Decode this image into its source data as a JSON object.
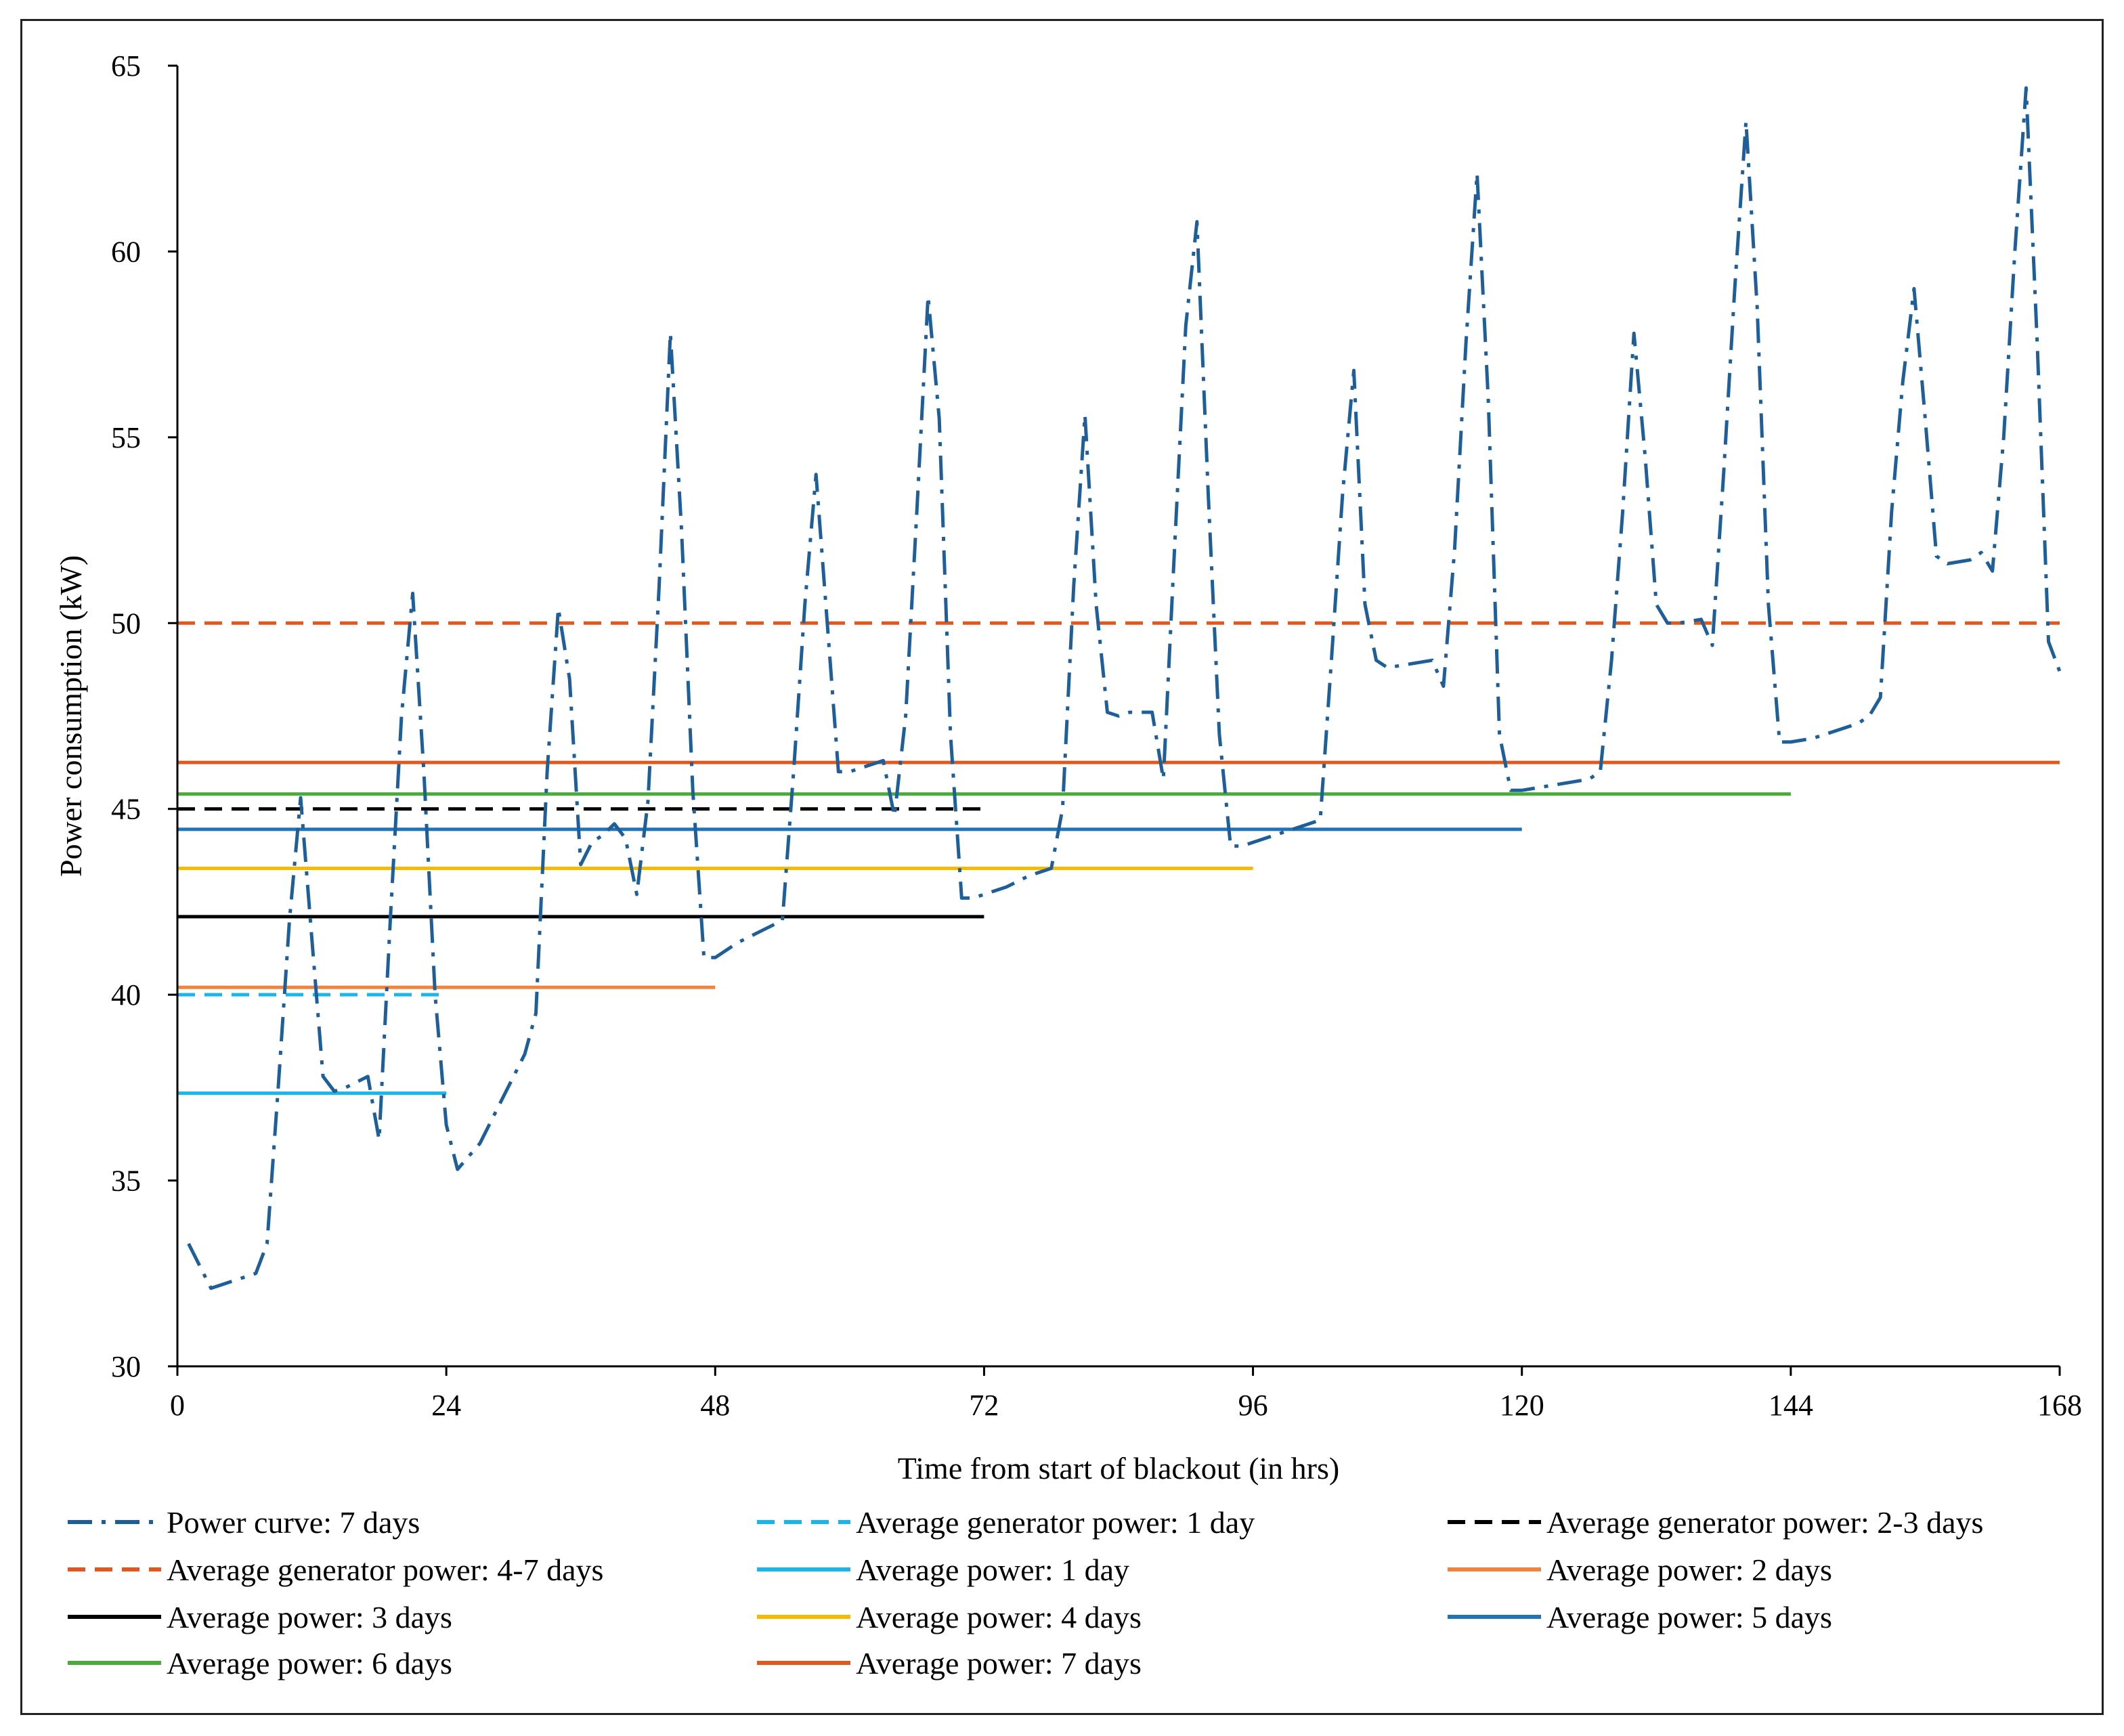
{
  "chart_data": {
    "type": "line",
    "title": "",
    "xlabel": "Time from start of blackout (in hrs)",
    "ylabel": "Power consumption (kW)",
    "xlim": [
      0,
      168
    ],
    "ylim": [
      30,
      65
    ],
    "x_ticks": [
      0,
      24,
      48,
      72,
      96,
      120,
      144,
      168
    ],
    "y_ticks": [
      30,
      35,
      40,
      45,
      50,
      55,
      60,
      65
    ],
    "grid": false,
    "legend_position": "bottom",
    "series": [
      {
        "id": "power-curve",
        "name": "Power curve: 7 days",
        "color": "#1f5f99",
        "dash": "dash-dot",
        "x": [
          1,
          3,
          7,
          8,
          9,
          10,
          11,
          12,
          13,
          14,
          15,
          17,
          18,
          19,
          20,
          21,
          22,
          23,
          24,
          25,
          27,
          29,
          31,
          32,
          33,
          34,
          35,
          36,
          37,
          38,
          39,
          40,
          41,
          42,
          43,
          44,
          45,
          46,
          47,
          48,
          50,
          52,
          54,
          55,
          56,
          57,
          58,
          59,
          60,
          61,
          63,
          64,
          65,
          66,
          67,
          68,
          69,
          70,
          71,
          72,
          74,
          76,
          78,
          79,
          80,
          81,
          82,
          83,
          84,
          85,
          87,
          88,
          89,
          90,
          91,
          92,
          93,
          94,
          95,
          96,
          98,
          100,
          102,
          103,
          104,
          105,
          106,
          107,
          108,
          110,
          112,
          113,
          114,
          115,
          116,
          117,
          118,
          119,
          120,
          122,
          124,
          126,
          127,
          128,
          129,
          130,
          131,
          132,
          133,
          134,
          136,
          137,
          138,
          139,
          140,
          141,
          142,
          143,
          144,
          146,
          148,
          150,
          151,
          152,
          153,
          154,
          155,
          156,
          157,
          158,
          160,
          161,
          162,
          163,
          164,
          165,
          166,
          167,
          168
        ],
        "values": [
          33.3,
          32.1,
          32.5,
          33.3,
          37.5,
          42.0,
          45.3,
          41.5,
          37.8,
          37.4,
          37.5,
          37.8,
          36.1,
          42.0,
          47.5,
          50.8,
          46.0,
          40.0,
          36.5,
          35.3,
          36.0,
          37.2,
          38.4,
          39.5,
          46.0,
          50.4,
          48.5,
          43.5,
          44.1,
          44.3,
          44.6,
          44.2,
          42.7,
          45.2,
          51.0,
          57.8,
          52.5,
          45.5,
          41.0,
          41.0,
          41.4,
          41.7,
          42.0,
          46.0,
          50.5,
          54.0,
          50.0,
          46.0,
          46.0,
          46.1,
          46.3,
          44.8,
          47.5,
          53.0,
          58.8,
          55.5,
          47.0,
          42.6,
          42.6,
          42.7,
          42.9,
          43.2,
          43.4,
          45.0,
          51.0,
          55.6,
          50.5,
          47.6,
          47.5,
          47.6,
          47.6,
          45.8,
          52.0,
          58.0,
          60.8,
          53.5,
          47.0,
          44.0,
          44.0,
          44.1,
          44.3,
          44.5,
          44.7,
          49.0,
          53.5,
          56.8,
          50.5,
          49.0,
          48.8,
          48.9,
          49.0,
          48.3,
          52.0,
          57.5,
          62.1,
          56.0,
          47.0,
          45.5,
          45.5,
          45.6,
          45.7,
          45.8,
          46.0,
          49.0,
          53.0,
          57.8,
          54.5,
          50.5,
          50.0,
          50.0,
          50.1,
          49.4,
          54.0,
          59.0,
          63.5,
          58.5,
          50.5,
          46.8,
          46.8,
          46.9,
          47.1,
          47.3,
          47.5,
          48.0,
          53.0,
          56.5,
          59.0,
          55.5,
          51.8,
          51.6,
          51.7,
          51.9,
          51.4,
          55.0,
          60.0,
          64.4,
          57.5,
          49.5,
          48.7
        ]
      },
      {
        "id": "avg-gen-1d",
        "name": "Average generator power: 1 day",
        "color": "#1ab6ea",
        "dash": "dashed",
        "x": [
          0,
          24
        ],
        "values": [
          40.0,
          40.0
        ]
      },
      {
        "id": "avg-gen-2-3d",
        "name": "Average generator power: 2-3 days",
        "color": "#000000",
        "dash": "dashed",
        "x": [
          0,
          72
        ],
        "values": [
          45.0,
          45.0
        ]
      },
      {
        "id": "avg-gen-4-7d",
        "name": "Average generator power: 4-7 days",
        "color": "#e2571e",
        "dash": "dashed",
        "x": [
          0,
          168
        ],
        "values": [
          50.0,
          50.0
        ]
      },
      {
        "id": "avg-1d",
        "name": "Average power: 1 day",
        "color": "#1ab6ea",
        "dash": "solid",
        "x": [
          0,
          24
        ],
        "values": [
          37.35,
          37.35
        ]
      },
      {
        "id": "avg-2d",
        "name": "Average power: 2 days",
        "color": "#f0843c",
        "dash": "solid",
        "x": [
          0,
          48
        ],
        "values": [
          40.2,
          40.2
        ]
      },
      {
        "id": "avg-3d",
        "name": "Average power: 3 days",
        "color": "#000000",
        "dash": "solid",
        "x": [
          0,
          72
        ],
        "values": [
          42.1,
          42.1
        ]
      },
      {
        "id": "avg-4d",
        "name": "Average power: 4 days",
        "color": "#f9b900",
        "dash": "solid",
        "x": [
          0,
          96
        ],
        "values": [
          43.4,
          43.4
        ]
      },
      {
        "id": "avg-5d",
        "name": "Average power: 5 days",
        "color": "#1f73b6",
        "dash": "solid",
        "x": [
          0,
          120
        ],
        "values": [
          44.45,
          44.45
        ]
      },
      {
        "id": "avg-6d",
        "name": "Average power: 6 days",
        "color": "#4aaa3a",
        "dash": "solid",
        "x": [
          0,
          144
        ],
        "values": [
          45.4,
          45.4
        ]
      },
      {
        "id": "avg-7d",
        "name": "Average power: 7 days",
        "color": "#e2571e",
        "dash": "solid",
        "x": [
          0,
          168
        ],
        "values": [
          46.25,
          46.25
        ]
      }
    ],
    "legend_order": [
      "power-curve",
      "avg-gen-1d",
      "avg-gen-2-3d",
      "avg-gen-4-7d",
      "avg-1d",
      "avg-2d",
      "avg-3d",
      "avg-4d",
      "avg-5d",
      "avg-6d",
      "avg-7d"
    ]
  }
}
